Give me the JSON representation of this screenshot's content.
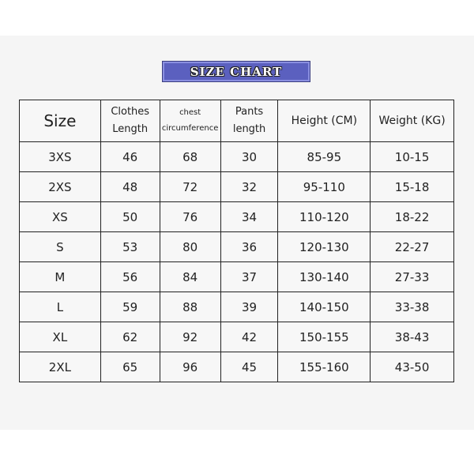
{
  "title": "SIZE CHART",
  "colors": {
    "banner": "#5b60bf",
    "background": "#f5f5f5",
    "border": "#222222"
  },
  "headers": [
    [
      "Size"
    ],
    [
      "Clothes",
      "Length"
    ],
    [
      "chest",
      "circumference"
    ],
    [
      "Pants",
      "length"
    ],
    [
      "Height (CM)"
    ],
    [
      "Weight (KG)"
    ]
  ],
  "rows": [
    [
      "3XS",
      "46",
      "68",
      "30",
      "85-95",
      "10-15"
    ],
    [
      "2XS",
      "48",
      "72",
      "32",
      "95-110",
      "15-18"
    ],
    [
      "XS",
      "50",
      "76",
      "34",
      "110-120",
      "18-22"
    ],
    [
      "S",
      "53",
      "80",
      "36",
      "120-130",
      "22-27"
    ],
    [
      "M",
      "56",
      "84",
      "37",
      "130-140",
      "27-33"
    ],
    [
      "L",
      "59",
      "88",
      "39",
      "140-150",
      "33-38"
    ],
    [
      "XL",
      "62",
      "92",
      "42",
      "150-155",
      "38-43"
    ],
    [
      "2XL",
      "65",
      "96",
      "45",
      "155-160",
      "43-50"
    ]
  ]
}
